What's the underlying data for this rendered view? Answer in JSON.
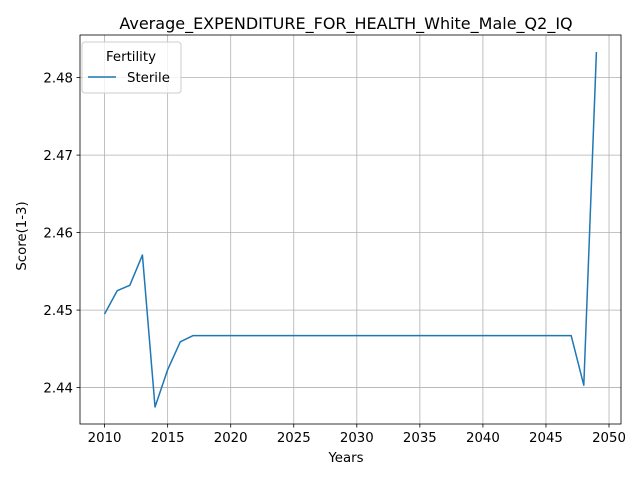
{
  "chart_data": {
    "type": "line",
    "title": "Average_EXPENDITURE_FOR_HEALTH_White_Male_Q2_IQ",
    "xlabel": "Years",
    "ylabel": "Score(1-3)",
    "xlim": [
      2008.05,
      2050.95
    ],
    "ylim": [
      2.4353,
      2.4855
    ],
    "xticks": [
      2010,
      2015,
      2020,
      2025,
      2030,
      2035,
      2040,
      2045,
      2050
    ],
    "yticks": [
      2.44,
      2.45,
      2.46,
      2.47,
      2.48
    ],
    "grid": true,
    "legend": {
      "title": "Fertility",
      "placement": "top-left"
    },
    "colors": {
      "series": "#1f77b4",
      "grid": "#b0b0b0"
    },
    "x": [
      2010,
      2011,
      2012,
      2013,
      2014,
      2015,
      2016,
      2017,
      2018,
      2019,
      2020,
      2021,
      2022,
      2023,
      2024,
      2025,
      2026,
      2027,
      2028,
      2029,
      2030,
      2031,
      2032,
      2033,
      2034,
      2035,
      2036,
      2037,
      2038,
      2039,
      2040,
      2041,
      2042,
      2043,
      2044,
      2045,
      2046,
      2047,
      2048,
      2049
    ],
    "series": [
      {
        "name": "Sterile",
        "values": [
          2.4495,
          2.4525,
          2.4532,
          2.4571,
          2.4375,
          2.4423,
          2.4459,
          2.4467,
          2.4467,
          2.4467,
          2.4467,
          2.4467,
          2.4467,
          2.4467,
          2.4467,
          2.4467,
          2.4467,
          2.4467,
          2.4467,
          2.4467,
          2.4467,
          2.4467,
          2.4467,
          2.4467,
          2.4467,
          2.4467,
          2.4467,
          2.4467,
          2.4467,
          2.4467,
          2.4467,
          2.4467,
          2.4467,
          2.4467,
          2.4467,
          2.4467,
          2.4467,
          2.4467,
          2.4403,
          2.4833
        ]
      }
    ]
  }
}
